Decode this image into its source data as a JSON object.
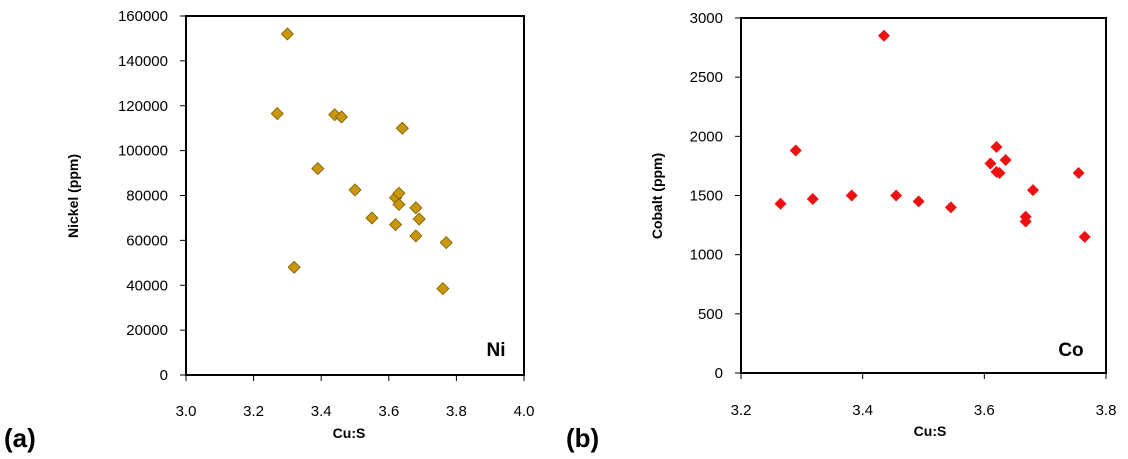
{
  "chart_data": [
    {
      "type": "scatter",
      "panel_label": "(a)",
      "annotation": "Ni",
      "xlabel": "Cu:S",
      "ylabel": "Nickel (ppm)",
      "xlim": [
        3.0,
        4.0
      ],
      "ylim": [
        0,
        160000
      ],
      "xticks": [
        "3.0",
        "3.2",
        "3.4",
        "3.6",
        "3.8",
        "4.0"
      ],
      "yticks": [
        "0",
        "20000",
        "40000",
        "60000",
        "80000",
        "100000",
        "120000",
        "140000",
        "160000"
      ],
      "grid": false,
      "marker": "diamond",
      "color": "#C9960C",
      "x": [
        3.3,
        3.27,
        3.44,
        3.46,
        3.64,
        3.39,
        3.5,
        3.62,
        3.63,
        3.63,
        3.68,
        3.69,
        3.55,
        3.62,
        3.68,
        3.77,
        3.32,
        3.76
      ],
      "y": [
        152000,
        116500,
        116000,
        115000,
        110000,
        92000,
        82500,
        79000,
        81000,
        76000,
        74500,
        69500,
        70000,
        67000,
        62000,
        59000,
        48000,
        38500
      ]
    },
    {
      "type": "scatter",
      "panel_label": "(b)",
      "annotation": "Co",
      "xlabel": "Cu:S",
      "ylabel": "Cobalt (ppm)",
      "xlim": [
        3.2,
        3.8
      ],
      "ylim": [
        0,
        3000
      ],
      "xticks": [
        "3.2",
        "3.4",
        "3.6",
        "3.8"
      ],
      "yticks": [
        "0",
        "500",
        "1000",
        "1500",
        "2000",
        "2500",
        "3000"
      ],
      "grid": false,
      "marker": "diamond",
      "color": "#EE1111",
      "x": [
        3.435,
        3.29,
        3.62,
        3.635,
        3.61,
        3.62,
        3.625,
        3.755,
        3.68,
        3.265,
        3.318,
        3.382,
        3.455,
        3.492,
        3.545,
        3.668,
        3.668,
        3.765
      ],
      "y": [
        2850,
        1880,
        1910,
        1800,
        1770,
        1700,
        1690,
        1690,
        1545,
        1430,
        1470,
        1500,
        1500,
        1450,
        1400,
        1320,
        1280,
        1150
      ]
    }
  ]
}
